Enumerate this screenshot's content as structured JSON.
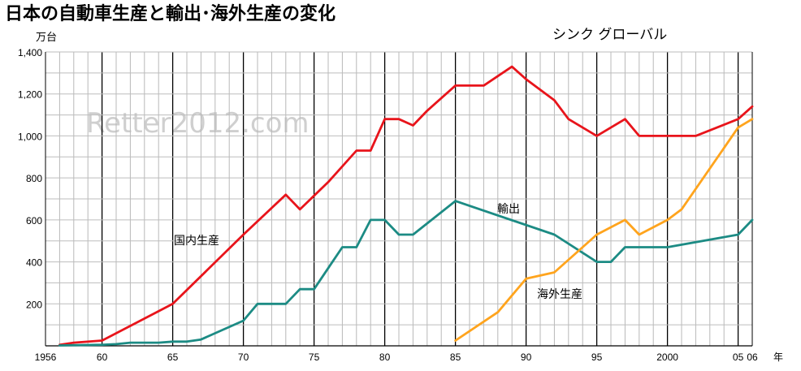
{
  "header": {
    "title": "日本の自動車生産と輸出･海外生産の変化",
    "y_unit": "万台",
    "x_unit": "年",
    "brand": "シンク グローバル",
    "watermark": "Retter2012.com"
  },
  "chart_data": {
    "type": "line",
    "title": "日本の自動車生産と輸出･海外生産の変化",
    "ylabel": "万台",
    "xlabel": "年",
    "xlim": [
      1956,
      2006
    ],
    "ylim": [
      0,
      1400
    ],
    "y_ticks": [
      200,
      400,
      600,
      800,
      1000,
      1200,
      1400
    ],
    "x_tick_labels": [
      {
        "x": 1956,
        "label": "1956"
      },
      {
        "x": 1960,
        "label": "60"
      },
      {
        "x": 1965,
        "label": "65"
      },
      {
        "x": 1970,
        "label": "70"
      },
      {
        "x": 1975,
        "label": "75"
      },
      {
        "x": 1980,
        "label": "80"
      },
      {
        "x": 1985,
        "label": "85"
      },
      {
        "x": 1990,
        "label": "90"
      },
      {
        "x": 1995,
        "label": "95"
      },
      {
        "x": 2000,
        "label": "2000"
      },
      {
        "x": 2005,
        "label": "05"
      },
      {
        "x": 2006,
        "label": "06"
      }
    ],
    "grid": true,
    "series": [
      {
        "name": "国内生産",
        "color": "#e8141b",
        "points": [
          [
            1957,
            5
          ],
          [
            1958,
            15
          ],
          [
            1960,
            25
          ],
          [
            1965,
            200
          ],
          [
            1970,
            530
          ],
          [
            1973,
            720
          ],
          [
            1974,
            650
          ],
          [
            1976,
            780
          ],
          [
            1978,
            930
          ],
          [
            1979,
            930
          ],
          [
            1980,
            1080
          ],
          [
            1981,
            1080
          ],
          [
            1982,
            1050
          ],
          [
            1983,
            1120
          ],
          [
            1985,
            1240
          ],
          [
            1986,
            1240
          ],
          [
            1987,
            1240
          ],
          [
            1989,
            1330
          ],
          [
            1990,
            1270
          ],
          [
            1992,
            1170
          ],
          [
            1993,
            1080
          ],
          [
            1995,
            1000
          ],
          [
            1997,
            1080
          ],
          [
            1998,
            1000
          ],
          [
            2000,
            1000
          ],
          [
            2002,
            1000
          ],
          [
            2005,
            1080
          ],
          [
            2006,
            1140
          ]
        ]
      },
      {
        "name": "輸出",
        "color": "#1c8b84",
        "points": [
          [
            1957,
            2
          ],
          [
            1960,
            5
          ],
          [
            1961,
            8
          ],
          [
            1962,
            15
          ],
          [
            1964,
            15
          ],
          [
            1965,
            20
          ],
          [
            1966,
            20
          ],
          [
            1967,
            30
          ],
          [
            1970,
            120
          ],
          [
            1971,
            200
          ],
          [
            1973,
            200
          ],
          [
            1974,
            270
          ],
          [
            1975,
            270
          ],
          [
            1976,
            370
          ],
          [
            1977,
            470
          ],
          [
            1978,
            470
          ],
          [
            1979,
            600
          ],
          [
            1980,
            600
          ],
          [
            1981,
            530
          ],
          [
            1982,
            530
          ],
          [
            1985,
            690
          ],
          [
            1992,
            530
          ],
          [
            1995,
            400
          ],
          [
            1996,
            400
          ],
          [
            1997,
            470
          ],
          [
            2000,
            470
          ],
          [
            2005,
            530
          ],
          [
            2006,
            600
          ]
        ]
      },
      {
        "name": "海外生産",
        "color": "#ffa41d",
        "points": [
          [
            1985,
            25
          ],
          [
            1988,
            160
          ],
          [
            1990,
            320
          ],
          [
            1992,
            350
          ],
          [
            1995,
            530
          ],
          [
            1997,
            600
          ],
          [
            1998,
            530
          ],
          [
            2000,
            600
          ],
          [
            2001,
            650
          ],
          [
            2005,
            1040
          ],
          [
            2006,
            1080
          ]
        ]
      }
    ],
    "annotations": [
      {
        "text": "国内生産",
        "series": "国内生産"
      },
      {
        "text": "輸出",
        "series": "輸出"
      },
      {
        "text": "海外生産",
        "series": "海外生産"
      }
    ]
  }
}
